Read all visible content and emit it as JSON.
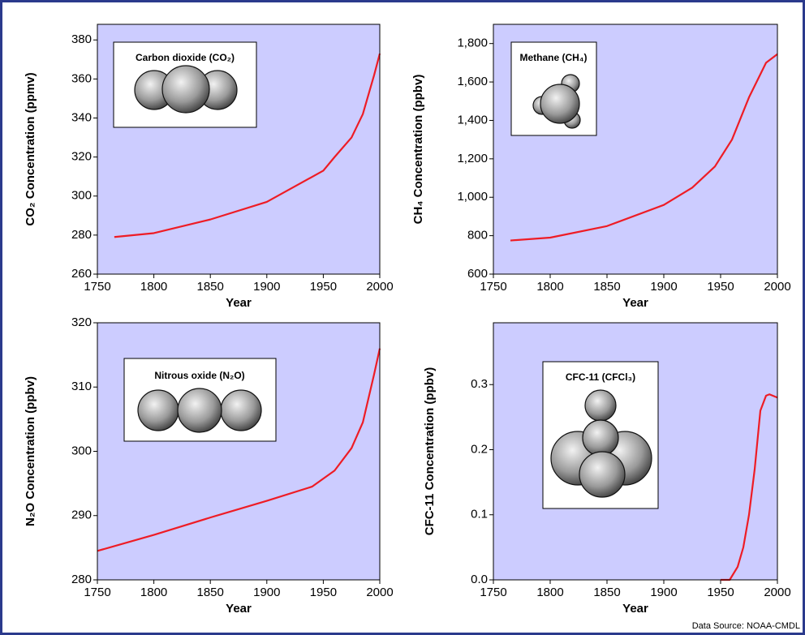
{
  "chart_data": [
    {
      "type": "line",
      "inset_label": "Carbon dioxide (CO₂)",
      "xlabel": "Year",
      "ylabel": "CO₂ Concentration (ppmv)",
      "x": [
        1765,
        1800,
        1850,
        1900,
        1950,
        1960,
        1975,
        1985,
        1995,
        2000
      ],
      "series": [
        {
          "color": "#ee1c25",
          "values": [
            279,
            281,
            288,
            297,
            313,
            320,
            330,
            342,
            362,
            373
          ]
        }
      ],
      "xlim": [
        1750,
        2000
      ],
      "xticks": [
        1750,
        1800,
        1850,
        1900,
        1950,
        2000
      ],
      "ylim": [
        260,
        388
      ],
      "yticks": [
        260,
        280,
        300,
        320,
        340,
        360,
        380
      ]
    },
    {
      "type": "line",
      "inset_label": "Methane (CH₄)",
      "xlabel": "Year",
      "ylabel": "CH₄ Concentration (ppbv)",
      "x": [
        1765,
        1800,
        1850,
        1900,
        1925,
        1945,
        1960,
        1975,
        1990,
        2000
      ],
      "series": [
        {
          "color": "#ee1c25",
          "values": [
            775,
            790,
            850,
            960,
            1050,
            1160,
            1300,
            1520,
            1700,
            1745
          ]
        }
      ],
      "xlim": [
        1750,
        2000
      ],
      "xticks": [
        1750,
        1800,
        1850,
        1900,
        1950,
        2000
      ],
      "ylim": [
        600,
        1900
      ],
      "yticks": [
        600,
        800,
        {
          "value": 1000,
          "label": "1,000"
        },
        {
          "value": 1200,
          "label": "1,200"
        },
        {
          "value": 1400,
          "label": "1,400"
        },
        {
          "value": 1600,
          "label": "1,600"
        },
        {
          "value": 1800,
          "label": "1,800"
        }
      ]
    },
    {
      "type": "line",
      "inset_label": "Nitrous oxide (N₂O)",
      "xlabel": "Year",
      "ylabel": "N₂O Concentration (ppbv)",
      "x": [
        1750,
        1800,
        1850,
        1900,
        1940,
        1960,
        1975,
        1985,
        1995,
        2000
      ],
      "series": [
        {
          "color": "#ee1c25",
          "values": [
            284.5,
            287,
            289.7,
            292.3,
            294.5,
            297,
            300.5,
            304.5,
            312,
            316
          ]
        }
      ],
      "xlim": [
        1750,
        2000
      ],
      "xticks": [
        1750,
        1800,
        1850,
        1900,
        1950,
        2000
      ],
      "ylim": [
        280,
        320
      ],
      "yticks": [
        280,
        290,
        300,
        310,
        320
      ]
    },
    {
      "type": "line",
      "inset_label": "CFC-11 (CFCl₃)",
      "xlabel": "Year",
      "ylabel": "CFC-11 Concentration (ppbv)",
      "x": [
        1950,
        1958,
        1965,
        1970,
        1975,
        1980,
        1985,
        1990,
        1993,
        2000
      ],
      "series": [
        {
          "color": "#ee1c25",
          "values": [
            0,
            0,
            0.02,
            0.05,
            0.1,
            0.17,
            0.26,
            0.283,
            0.285,
            0.28
          ]
        }
      ],
      "xlim": [
        1750,
        2000
      ],
      "xticks": [
        1750,
        1800,
        1850,
        1900,
        1950,
        2000
      ],
      "ylim": [
        0,
        0.395
      ],
      "yticks": [
        {
          "value": 0,
          "label": "0.0"
        },
        0.1,
        0.2,
        0.3
      ]
    }
  ],
  "source": "Data Source: NOAA-CMDL"
}
